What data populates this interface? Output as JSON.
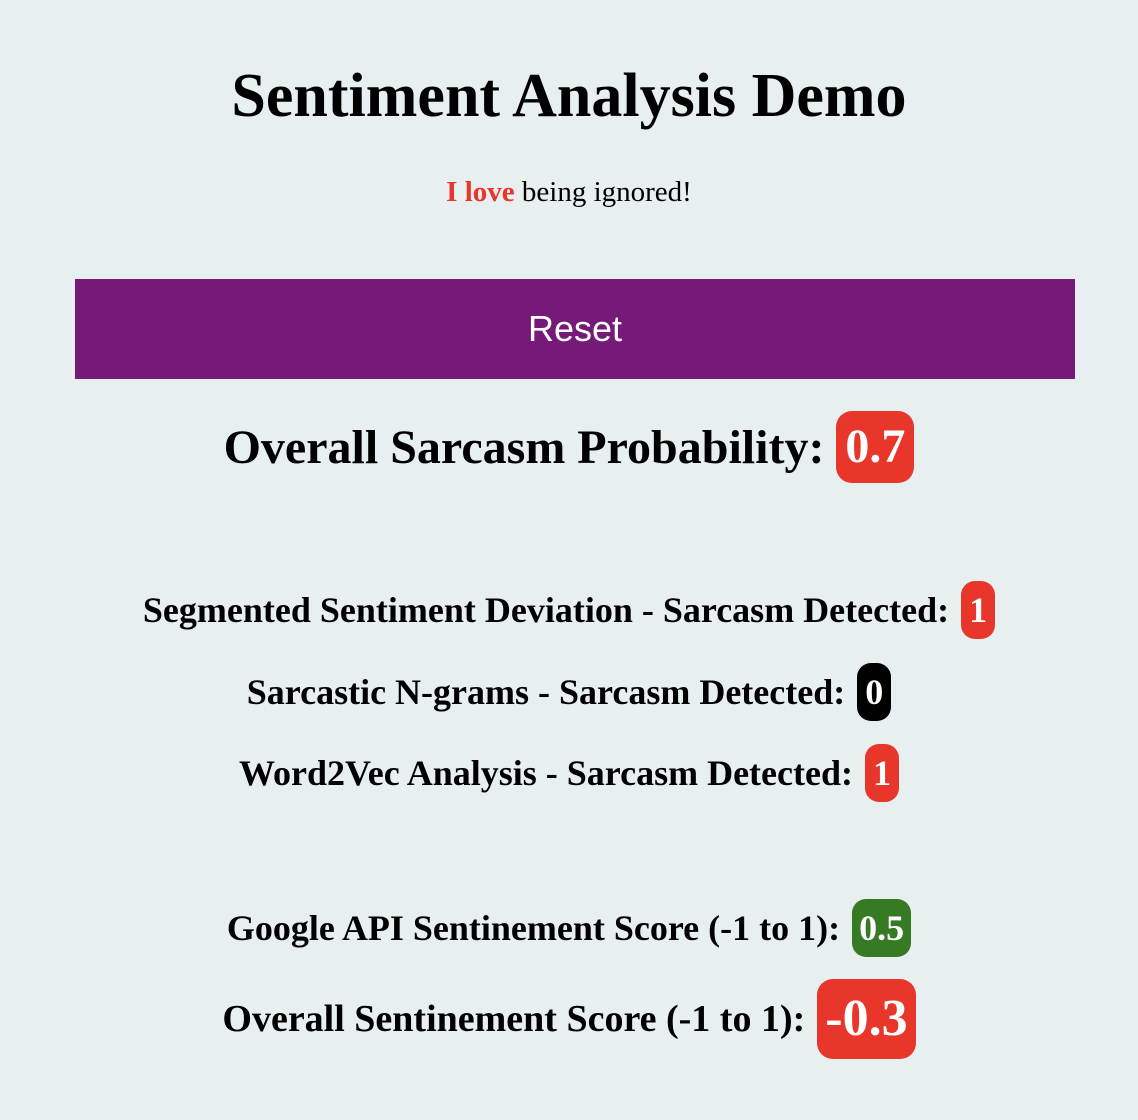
{
  "page": {
    "title": "Sentiment Analysis Demo"
  },
  "sentence": {
    "highlight": "I love",
    "rest": " being ignored!"
  },
  "reset_button": {
    "label": "Reset"
  },
  "overall_probability": {
    "label": "Overall Sarcasm Probability:",
    "value": "0.7"
  },
  "metrics": [
    {
      "label": "Segmented Sentiment Deviation - Sarcasm Detected:",
      "value": "1"
    },
    {
      "label": "Sarcastic N-grams - Sarcasm Detected:",
      "value": "0"
    },
    {
      "label": "Word2Vec Analysis - Sarcasm Detected:",
      "value": "1"
    }
  ],
  "google_score": {
    "label": "Google API Sentinement Score (-1 to 1):",
    "value": "0.5"
  },
  "overall_score": {
    "label": "Overall Sentinement Score (-1 to 1):",
    "value": "-0.3"
  },
  "colors": {
    "background": "#e7eff0",
    "accent_purple": "#751a78",
    "badge_red": "#e8372a",
    "badge_black": "#000000",
    "badge_green": "#367a24"
  }
}
